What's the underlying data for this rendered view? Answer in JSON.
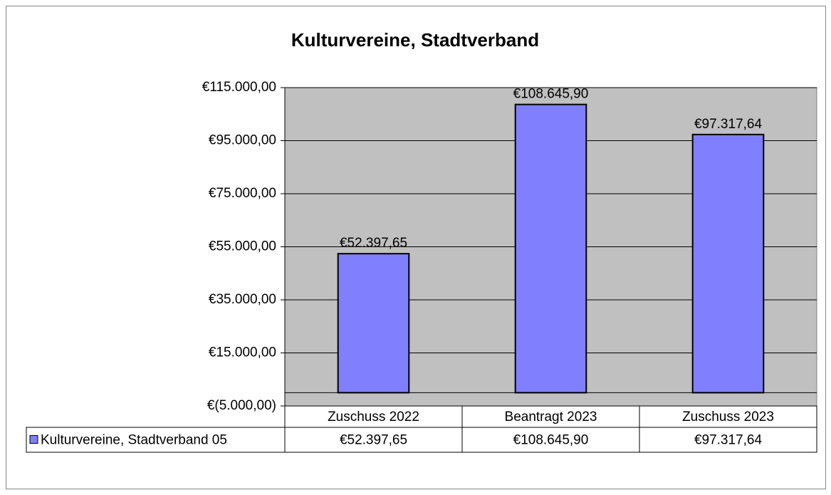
{
  "chart_data": {
    "type": "bar",
    "title": "Kulturvereine, Stadtverband",
    "categories": [
      "Zuschuss 2022",
      "Beantragt 2023",
      "Zuschuss 2023"
    ],
    "series": [
      {
        "name": "Kulturvereine, Stadtverband 05",
        "color": "#8080ff",
        "values": [
          52397.65,
          108645.9,
          97317.64
        ],
        "value_labels": [
          "€52.397,65",
          "€108.645,90",
          "€97.317,64"
        ]
      }
    ],
    "ylim": [
      -5000,
      115000
    ],
    "yticks": [
      {
        "value": -5000,
        "label": "€(5.000,00)"
      },
      {
        "value": 15000,
        "label": "€15.000,00"
      },
      {
        "value": 35000,
        "label": "€35.000,00"
      },
      {
        "value": 55000,
        "label": "€55.000,00"
      },
      {
        "value": 75000,
        "label": "€75.000,00"
      },
      {
        "value": 95000,
        "label": "€95.000,00"
      },
      {
        "value": 115000,
        "label": "€115.000,00"
      }
    ],
    "grid": true,
    "plot_background": "#c0c0c0"
  }
}
